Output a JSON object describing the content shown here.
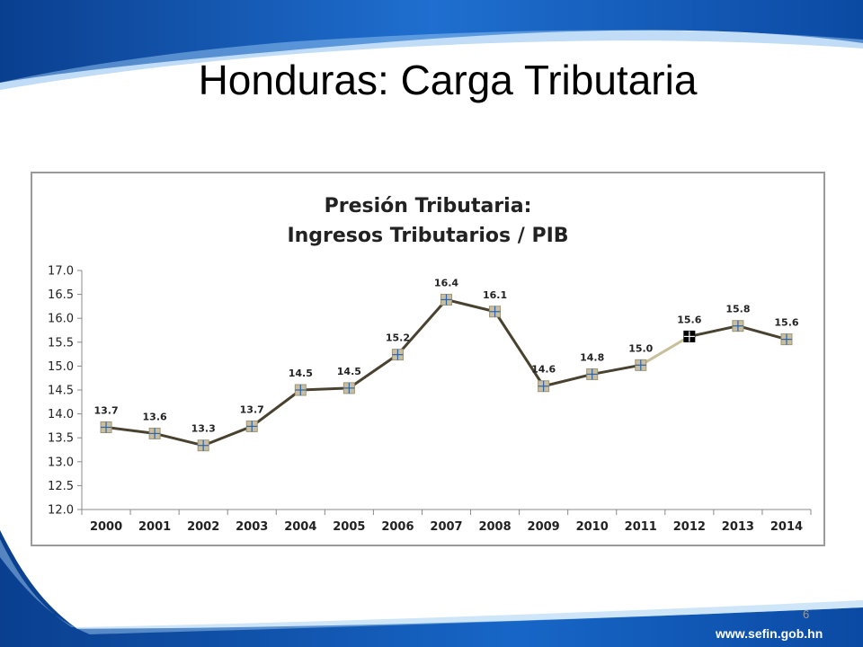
{
  "slide": {
    "title": "Honduras: Carga Tributaria",
    "page_number": "6",
    "footer_url": "www.sefin.gob.hn"
  },
  "colors": {
    "line_main": "#4a4230",
    "line_highlight": "#c8c09a",
    "marker_fill": "#c9bfa0",
    "marker_cross": "#2f63a8",
    "marker_highlight": "#000000",
    "brand_blue": "#1a5fb4"
  },
  "chart_data": {
    "type": "line",
    "title_lines": [
      "Presión Tributaria:",
      "Ingresos Tributarios / PIB"
    ],
    "categories": [
      "2000",
      "2001",
      "2002",
      "2003",
      "2004",
      "2005",
      "2006",
      "2007",
      "2008",
      "2009",
      "2010",
      "2011",
      "2012",
      "2013",
      "2014"
    ],
    "values": [
      13.72,
      13.59,
      13.34,
      13.74,
      14.5,
      14.54,
      15.24,
      16.39,
      16.14,
      14.58,
      14.83,
      15.02,
      15.62,
      15.84,
      15.56
    ],
    "data_labels": [
      "13.7",
      "13.6",
      "13.3",
      "13.7",
      "14.5",
      "14.5",
      "15.2",
      "16.4",
      "16.1",
      "14.6",
      "14.8",
      "15.0",
      "15.6",
      "15.8",
      "15.6"
    ],
    "highlight_index": 12,
    "y_ticks": [
      "12.0",
      "12.5",
      "13.0",
      "13.5",
      "14.0",
      "14.5",
      "15.0",
      "15.5",
      "16.0",
      "16.5",
      "17.0"
    ],
    "ylim": [
      12.0,
      17.0
    ],
    "legend": "none",
    "grid": false
  }
}
